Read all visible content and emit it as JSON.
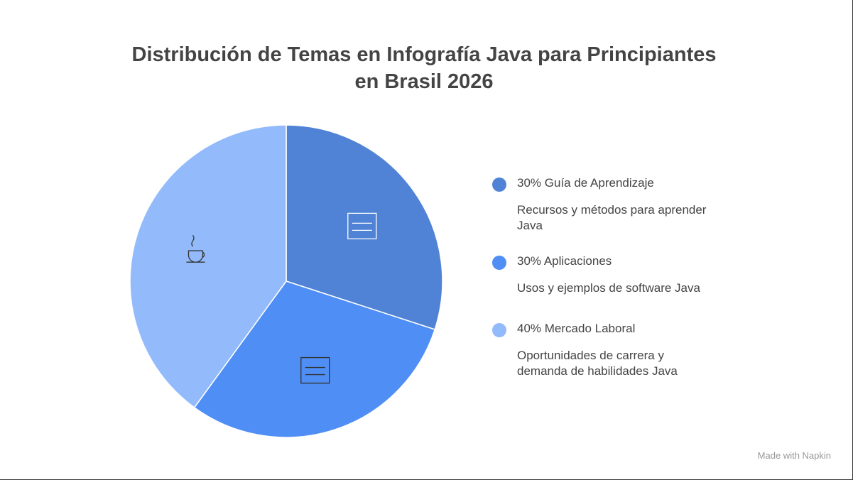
{
  "chart_data": {
    "type": "pie",
    "title": "Distribución de Temas en Infografía Java para Principiantes en Brasil 2026",
    "categories": [
      "Guía de Aprendizaje",
      "Aplicaciones",
      "Mercado Laboral"
    ],
    "values": [
      30,
      30,
      40
    ],
    "value_labels": [
      "30%",
      "30%",
      "40%"
    ],
    "descriptions": [
      "Recursos y métodos para aprender Java",
      "Usos y ejemplos de software Java",
      "Oportunidades de carrera y demanda de habilidades Java"
    ],
    "colors": [
      "#5083d6",
      "#4f8ef5",
      "#93bbfb"
    ],
    "legend": "right",
    "watermark": "Made with Napkin"
  }
}
